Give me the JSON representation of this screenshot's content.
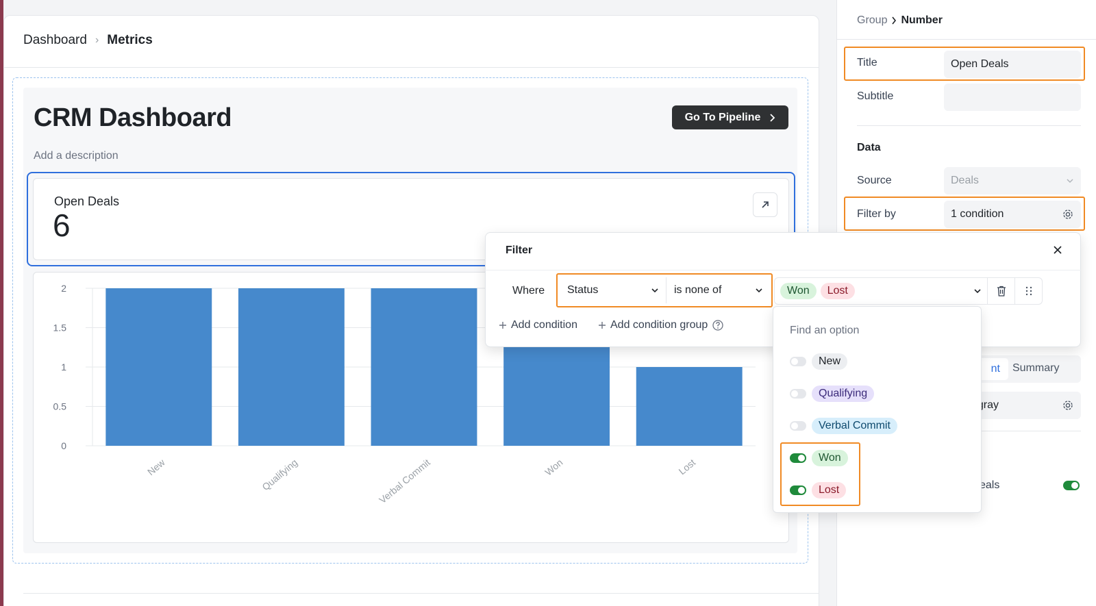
{
  "breadcrumb": {
    "parent": "Dashboard",
    "current": "Metrics"
  },
  "dashboard": {
    "title": "CRM Dashboard",
    "description": "Add a description",
    "pipeline_button": "Go To Pipeline"
  },
  "number_widget": {
    "title": "Open Deals",
    "value": "6"
  },
  "chart_data": {
    "type": "bar",
    "categories": [
      "New",
      "Qualifying",
      "Verbal Commit",
      "Won",
      "Lost"
    ],
    "values": [
      2,
      2,
      2,
      2,
      1
    ],
    "ylim": [
      0,
      2
    ],
    "yticks": [
      "0",
      "0.5",
      "1",
      "1.5",
      "2"
    ],
    "ytick_values": [
      0,
      0.5,
      1,
      1.5,
      2
    ],
    "color": "#4689cc",
    "grid": "horizontal"
  },
  "right_panel": {
    "breadcrumb_parent": "Group",
    "breadcrumb_current": "Number",
    "title_label": "Title",
    "title_value": "Open Deals",
    "subtitle_label": "Subtitle",
    "subtitle_value": "",
    "data_heading": "Data",
    "source_label": "Source",
    "source_value": "Deals",
    "filter_label": "Filter by",
    "filter_value": "1 condition",
    "segment_active": "nt",
    "segment_other": "Summary",
    "color_value": "id gray",
    "deals_label": "eals"
  },
  "filter": {
    "heading": "Filter",
    "where": "Where",
    "field": "Status",
    "operator": "is none of",
    "selected_values": [
      "Won",
      "Lost"
    ],
    "add_condition": "Add condition",
    "add_condition_group": "Add condition group",
    "search_placeholder": "Find an option",
    "options": [
      {
        "label": "New",
        "on": false
      },
      {
        "label": "Qualifying",
        "on": false
      },
      {
        "label": "Verbal Commit",
        "on": false
      },
      {
        "label": "Won",
        "on": true
      },
      {
        "label": "Lost",
        "on": true
      }
    ]
  },
  "colors": {
    "accent": "#f08a24",
    "primary": "#2f6fdd",
    "bar": "#4689cc",
    "toggle_on": "#1f8a3b"
  }
}
